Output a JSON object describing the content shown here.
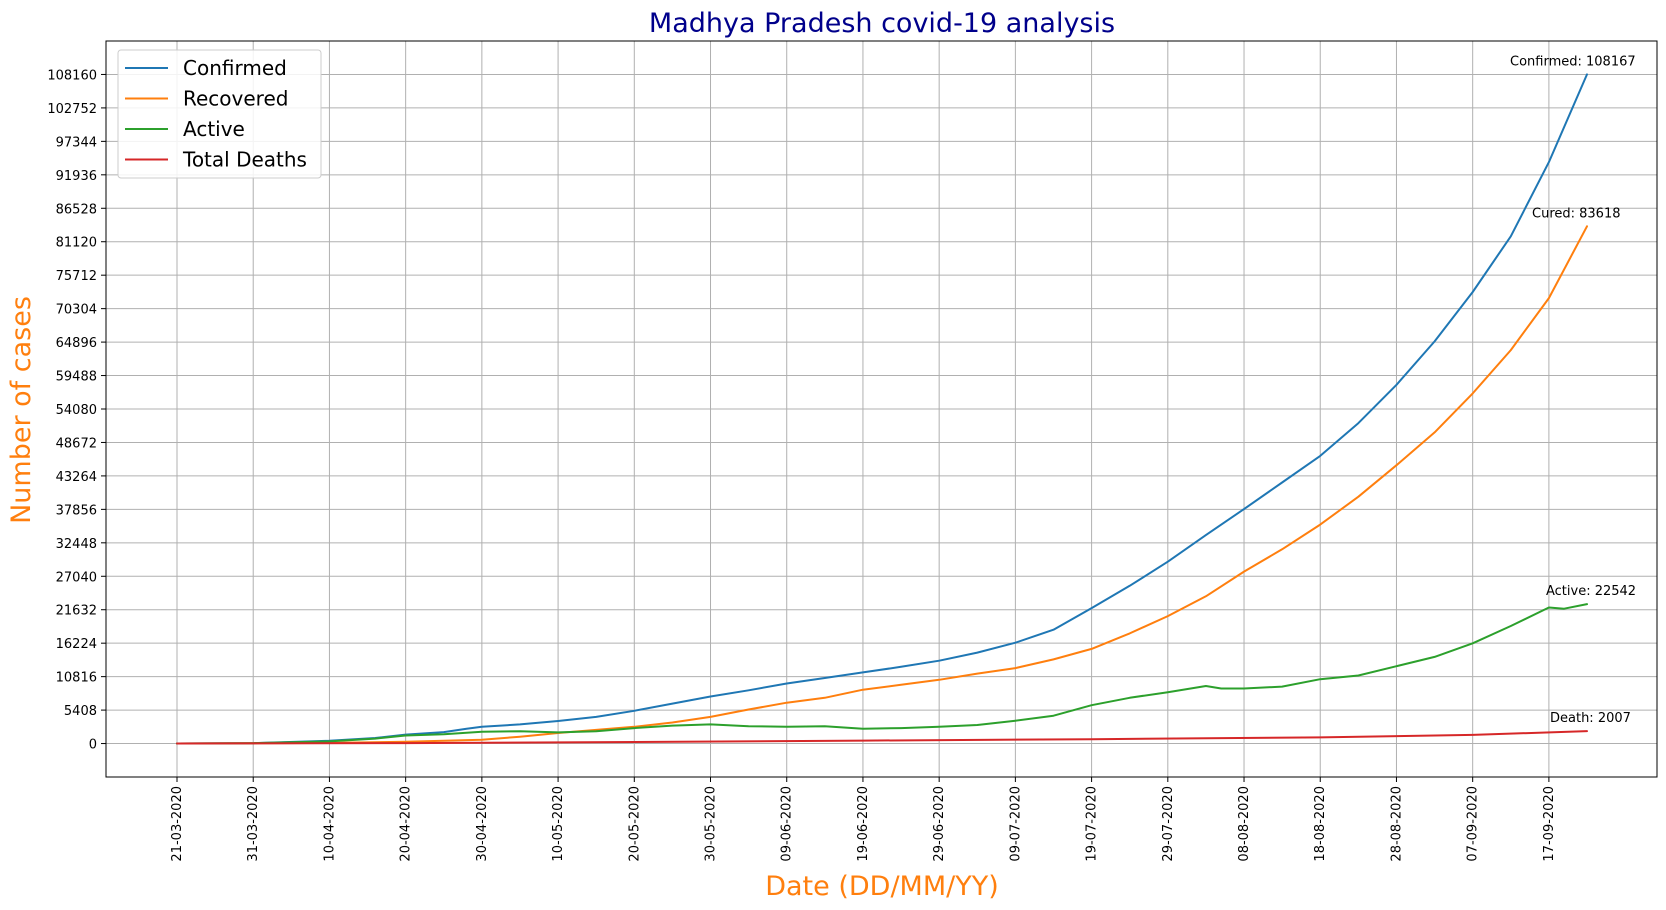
{
  "chart_data": {
    "type": "line",
    "title": "Madhya Pradesh covid-19 analysis",
    "xlabel": "Date (DD/MM/YY)",
    "ylabel": "Number of cases",
    "x_ticks": [
      "21-03-2020",
      "31-03-2020",
      "10-04-2020",
      "20-04-2020",
      "30-04-2020",
      "10-05-2020",
      "20-05-2020",
      "30-05-2020",
      "09-06-2020",
      "19-06-2020",
      "29-06-2020",
      "09-07-2020",
      "19-07-2020",
      "29-07-2020",
      "08-08-2020",
      "18-08-2020",
      "28-08-2020",
      "07-09-2020",
      "17-09-2020"
    ],
    "y_ticks": [
      0,
      5408,
      10816,
      16224,
      21632,
      27040,
      32448,
      37856,
      43264,
      48672,
      54080,
      59488,
      64896,
      70304,
      75712,
      81120,
      86528,
      91936,
      97344,
      102752,
      108160
    ],
    "x_range": [
      "2020-03-21",
      "2020-09-22"
    ],
    "ylim": [
      -5408,
      113568
    ],
    "grid": true,
    "legend_position": "top-left",
    "series": [
      {
        "name": "Confirmed",
        "color": "#1f77b4",
        "points": [
          [
            "2020-03-21",
            0
          ],
          [
            "2020-03-31",
            70
          ],
          [
            "2020-04-10",
            450
          ],
          [
            "2020-04-16",
            900
          ],
          [
            "2020-04-20",
            1450
          ],
          [
            "2020-04-25",
            1850
          ],
          [
            "2020-04-28",
            2400
          ],
          [
            "2020-04-30",
            2700
          ],
          [
            "2020-05-05",
            3100
          ],
          [
            "2020-05-10",
            3650
          ],
          [
            "2020-05-15",
            4300
          ],
          [
            "2020-05-20",
            5300
          ],
          [
            "2020-05-25",
            6450
          ],
          [
            "2020-05-30",
            7600
          ],
          [
            "2020-06-04",
            8600
          ],
          [
            "2020-06-09",
            9700
          ],
          [
            "2020-06-14",
            10600
          ],
          [
            "2020-06-19",
            11500
          ],
          [
            "2020-06-24",
            12400
          ],
          [
            "2020-06-29",
            13400
          ],
          [
            "2020-07-04",
            14700
          ],
          [
            "2020-07-09",
            16300
          ],
          [
            "2020-07-14",
            18400
          ],
          [
            "2020-07-19",
            21900
          ],
          [
            "2020-07-24",
            25500
          ],
          [
            "2020-07-29",
            29400
          ],
          [
            "2020-08-03",
            33700
          ],
          [
            "2020-08-08",
            37900
          ],
          [
            "2020-08-13",
            42200
          ],
          [
            "2020-08-18",
            46500
          ],
          [
            "2020-08-23",
            51800
          ],
          [
            "2020-08-28",
            58000
          ],
          [
            "2020-09-02",
            65000
          ],
          [
            "2020-09-07",
            73000
          ],
          [
            "2020-09-12",
            82000
          ],
          [
            "2020-09-17",
            94000
          ],
          [
            "2020-09-22",
            108167
          ]
        ]
      },
      {
        "name": "Recovered",
        "color": "#ff7f0e",
        "points": [
          [
            "2020-03-21",
            0
          ],
          [
            "2020-04-10",
            100
          ],
          [
            "2020-04-20",
            300
          ],
          [
            "2020-04-30",
            600
          ],
          [
            "2020-05-05",
            1100
          ],
          [
            "2020-05-10",
            1700
          ],
          [
            "2020-05-15",
            2200
          ],
          [
            "2020-05-20",
            2700
          ],
          [
            "2020-05-25",
            3400
          ],
          [
            "2020-05-30",
            4300
          ],
          [
            "2020-06-04",
            5500
          ],
          [
            "2020-06-09",
            6600
          ],
          [
            "2020-06-14",
            7400
          ],
          [
            "2020-06-19",
            8700
          ],
          [
            "2020-06-24",
            9500
          ],
          [
            "2020-06-29",
            10300
          ],
          [
            "2020-07-04",
            11300
          ],
          [
            "2020-07-09",
            12200
          ],
          [
            "2020-07-14",
            13600
          ],
          [
            "2020-07-19",
            15300
          ],
          [
            "2020-07-24",
            17800
          ],
          [
            "2020-07-29",
            20600
          ],
          [
            "2020-08-03",
            23800
          ],
          [
            "2020-08-08",
            27800
          ],
          [
            "2020-08-13",
            31400
          ],
          [
            "2020-08-18",
            35400
          ],
          [
            "2020-08-23",
            39900
          ],
          [
            "2020-08-28",
            45000
          ],
          [
            "2020-09-02",
            50300
          ],
          [
            "2020-09-07",
            56600
          ],
          [
            "2020-09-12",
            63600
          ],
          [
            "2020-09-17",
            72000
          ],
          [
            "2020-09-22",
            83618
          ]
        ]
      },
      {
        "name": "Active",
        "color": "#2ca02c",
        "points": [
          [
            "2020-03-21",
            0
          ],
          [
            "2020-03-31",
            60
          ],
          [
            "2020-04-10",
            350
          ],
          [
            "2020-04-16",
            800
          ],
          [
            "2020-04-20",
            1300
          ],
          [
            "2020-04-25",
            1500
          ],
          [
            "2020-04-30",
            1900
          ],
          [
            "2020-05-05",
            2000
          ],
          [
            "2020-05-10",
            1800
          ],
          [
            "2020-05-15",
            2000
          ],
          [
            "2020-05-20",
            2500
          ],
          [
            "2020-05-25",
            2900
          ],
          [
            "2020-05-30",
            3100
          ],
          [
            "2020-06-04",
            2800
          ],
          [
            "2020-06-09",
            2700
          ],
          [
            "2020-06-14",
            2800
          ],
          [
            "2020-06-19",
            2400
          ],
          [
            "2020-06-24",
            2500
          ],
          [
            "2020-06-29",
            2700
          ],
          [
            "2020-07-04",
            3000
          ],
          [
            "2020-07-09",
            3700
          ],
          [
            "2020-07-14",
            4500
          ],
          [
            "2020-07-19",
            6200
          ],
          [
            "2020-07-24",
            7400
          ],
          [
            "2020-07-29",
            8300
          ],
          [
            "2020-08-03",
            9300
          ],
          [
            "2020-08-05",
            8900
          ],
          [
            "2020-08-08",
            8900
          ],
          [
            "2020-08-13",
            9200
          ],
          [
            "2020-08-18",
            10400
          ],
          [
            "2020-08-23",
            11000
          ],
          [
            "2020-08-28",
            12500
          ],
          [
            "2020-09-02",
            14000
          ],
          [
            "2020-09-07",
            16200
          ],
          [
            "2020-09-12",
            19000
          ],
          [
            "2020-09-17",
            22000
          ],
          [
            "2020-09-19",
            21800
          ],
          [
            "2020-09-22",
            22542
          ]
        ]
      },
      {
        "name": "Total Deaths",
        "color": "#d62728",
        "points": [
          [
            "2020-03-21",
            0
          ],
          [
            "2020-04-20",
            80
          ],
          [
            "2020-05-20",
            250
          ],
          [
            "2020-06-19",
            480
          ],
          [
            "2020-07-19",
            700
          ],
          [
            "2020-08-18",
            1000
          ],
          [
            "2020-09-07",
            1400
          ],
          [
            "2020-09-22",
            2007
          ]
        ]
      }
    ],
    "annotations": [
      {
        "text": "Confirmed: 108167",
        "date": "2020-09-22",
        "value": 108167
      },
      {
        "text": "Cured: 83618",
        "date": "2020-09-22",
        "value": 83618
      },
      {
        "text": "Active: 22542",
        "date": "2020-09-22",
        "value": 22542
      },
      {
        "text": "Death: 2007",
        "date": "2020-09-22",
        "value": 2007
      }
    ]
  }
}
